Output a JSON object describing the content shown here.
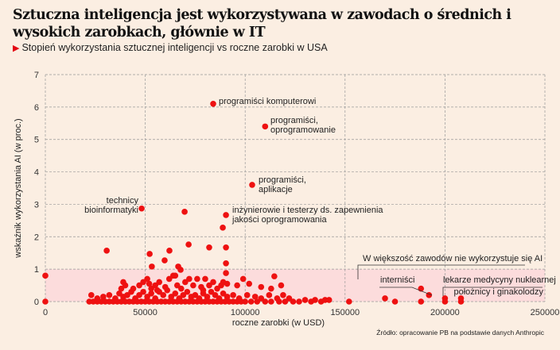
{
  "title": "Sztuczna inteligencja jest wykorzystywana w zawodach o średnich i wysokich zarobkach, głównie w IT",
  "subtitle": "Stopień wykorzystania sztucznej inteligencji vs roczne zarobki w USA",
  "source": "Źródło: opracowanie PB na podstawie danych Anthropic",
  "colors": {
    "background": "#fbeee2",
    "points": "#ee1111",
    "band": "#fcdcdc",
    "accent": "#e30613",
    "grid": "#999999"
  },
  "chart_data": {
    "type": "scatter",
    "xlabel": "roczne zarobki (w USD)",
    "ylabel": "wskaźnik wykorzystania AI (w proc.)",
    "xlim": [
      0,
      250000
    ],
    "ylim": [
      0,
      7
    ],
    "xticks": [
      "0",
      "50000",
      "100000",
      "150000",
      "200000",
      "250000"
    ],
    "yticks": [
      "0",
      "1",
      "2",
      "3",
      "4",
      "5",
      "6",
      "7"
    ],
    "grid": true,
    "highlight_band": [
      0,
      1
    ],
    "annotations": [
      {
        "text": "programiści komputerowi",
        "x": 84000,
        "y": 6.1
      },
      {
        "text": "programiści,",
        "text2": "oprogramowanie",
        "x": 110000,
        "y": 5.4
      },
      {
        "text": "programiści,",
        "text2": "aplikacje",
        "x": 103500,
        "y": 3.6
      },
      {
        "text": "technicy",
        "text2": "bioinformatyki",
        "x": 48200,
        "y": 2.87
      },
      {
        "text": "inżynierowie i testerzy ds. zapewnienia",
        "text2": "jakości oprogramowania",
        "x": 90400,
        "y": 2.67
      },
      {
        "text": "W większość zawodów nie wykorzystuje się AI"
      },
      {
        "text": "interniści",
        "x": 192000,
        "y": 0.2
      },
      {
        "text": "lekarze medycyny nuklearnej",
        "x": 200000,
        "y": 0.1
      },
      {
        "text": "położnicy i ginakolodzy",
        "x": 208000,
        "y": 0.1
      }
    ],
    "points": [
      [
        0,
        0.8
      ],
      [
        0,
        0
      ],
      [
        84000,
        6.1
      ],
      [
        110000,
        5.4
      ],
      [
        103500,
        3.6
      ],
      [
        48200,
        2.87
      ],
      [
        69700,
        2.77
      ],
      [
        90400,
        2.67
      ],
      [
        88800,
        2.28
      ],
      [
        30700,
        1.57
      ],
      [
        52200,
        1.47
      ],
      [
        62100,
        1.57
      ],
      [
        71700,
        1.76
      ],
      [
        82000,
        1.67
      ],
      [
        90400,
        1.67
      ],
      [
        59700,
        1.27
      ],
      [
        53300,
        1.08
      ],
      [
        66500,
        1.08
      ],
      [
        67700,
        0.98
      ],
      [
        90400,
        1.18
      ],
      [
        90400,
        0.88
      ],
      [
        114600,
        0.78
      ],
      [
        22000,
        0
      ],
      [
        24000,
        0
      ],
      [
        26000,
        0
      ],
      [
        28000,
        0
      ],
      [
        30000,
        0
      ],
      [
        32000,
        0
      ],
      [
        34000,
        0
      ],
      [
        36000,
        0
      ],
      [
        38000,
        0
      ],
      [
        40000,
        0
      ],
      [
        42000,
        0
      ],
      [
        44000,
        0
      ],
      [
        46000,
        0
      ],
      [
        48000,
        0
      ],
      [
        50000,
        0
      ],
      [
        52000,
        0
      ],
      [
        54000,
        0
      ],
      [
        56000,
        0
      ],
      [
        58000,
        0
      ],
      [
        60000,
        0
      ],
      [
        62000,
        0
      ],
      [
        64000,
        0
      ],
      [
        66000,
        0
      ],
      [
        68000,
        0
      ],
      [
        70000,
        0
      ],
      [
        72000,
        0
      ],
      [
        74000,
        0
      ],
      [
        76000,
        0
      ],
      [
        78000,
        0
      ],
      [
        80000,
        0
      ],
      [
        82000,
        0
      ],
      [
        84000,
        0
      ],
      [
        86000,
        0
      ],
      [
        88000,
        0
      ],
      [
        90000,
        0
      ],
      [
        92000,
        0
      ],
      [
        94000,
        0
      ],
      [
        96000,
        0
      ],
      [
        98000,
        0
      ],
      [
        100000,
        0
      ],
      [
        103000,
        0
      ],
      [
        106000,
        0
      ],
      [
        110000,
        0
      ],
      [
        113000,
        0
      ],
      [
        117000,
        0
      ],
      [
        120000,
        0
      ],
      [
        124000,
        0
      ],
      [
        127000,
        0
      ],
      [
        23000,
        0.2
      ],
      [
        26000,
        0.1
      ],
      [
        29000,
        0.15
      ],
      [
        32000,
        0.2
      ],
      [
        35000,
        0.1
      ],
      [
        37000,
        0.25
      ],
      [
        39000,
        0.15
      ],
      [
        41000,
        0.2
      ],
      [
        43000,
        0.3
      ],
      [
        45000,
        0.1
      ],
      [
        47000,
        0.2
      ],
      [
        49000,
        0.3
      ],
      [
        51000,
        0.15
      ],
      [
        53000,
        0.25
      ],
      [
        55000,
        0.1
      ],
      [
        57000,
        0.3
      ],
      [
        59000,
        0.2
      ],
      [
        61000,
        0.35
      ],
      [
        63000,
        0.15
      ],
      [
        65000,
        0.25
      ],
      [
        67000,
        0.1
      ],
      [
        69000,
        0.2
      ],
      [
        71000,
        0.3
      ],
      [
        73000,
        0.15
      ],
      [
        75000,
        0.2
      ],
      [
        77000,
        0.1
      ],
      [
        79000,
        0.25
      ],
      [
        81000,
        0.15
      ],
      [
        83000,
        0.3
      ],
      [
        85000,
        0.2
      ],
      [
        87000,
        0.1
      ],
      [
        89000,
        0.25
      ],
      [
        91000,
        0.15
      ],
      [
        94000,
        0.2
      ],
      [
        97000,
        0.1
      ],
      [
        101000,
        0.2
      ],
      [
        105000,
        0.15
      ],
      [
        108000,
        0.1
      ],
      [
        112000,
        0.2
      ],
      [
        116000,
        0.1
      ],
      [
        119000,
        0.2
      ],
      [
        122000,
        0.1
      ],
      [
        38000,
        0.4
      ],
      [
        40000,
        0.5
      ],
      [
        44000,
        0.4
      ],
      [
        47000,
        0.5
      ],
      [
        49000,
        0.6
      ],
      [
        51000,
        0.7
      ],
      [
        53000,
        0.4
      ],
      [
        55000,
        0.5
      ],
      [
        57000,
        0.6
      ],
      [
        60000,
        0.45
      ],
      [
        62000,
        0.7
      ],
      [
        64000,
        0.8
      ],
      [
        66000,
        0.5
      ],
      [
        68000,
        0.4
      ],
      [
        70000,
        0.6
      ],
      [
        72000,
        0.7
      ],
      [
        74000,
        0.5
      ],
      [
        76000,
        0.7
      ],
      [
        78000,
        0.45
      ],
      [
        80000,
        0.7
      ],
      [
        82000,
        0.5
      ],
      [
        84000,
        0.6
      ],
      [
        86000,
        0.4
      ],
      [
        88000,
        0.5
      ],
      [
        91000,
        0.55
      ],
      [
        96000,
        0.5
      ],
      [
        99000,
        0.7
      ],
      [
        102000,
        0.55
      ],
      [
        108000,
        0.45
      ],
      [
        113000,
        0.4
      ],
      [
        118000,
        0.5
      ],
      [
        39000,
        0.6
      ],
      [
        52000,
        0.55
      ],
      [
        56000,
        0.35
      ],
      [
        65000,
        0.8
      ],
      [
        79000,
        0.35
      ],
      [
        89000,
        0.6
      ],
      [
        130000,
        0.05
      ],
      [
        133000,
        0
      ],
      [
        135000,
        0.05
      ],
      [
        138000,
        0
      ],
      [
        140000,
        0.05
      ],
      [
        142000,
        0.05
      ],
      [
        152000,
        0
      ],
      [
        170000,
        0.1
      ],
      [
        175000,
        0
      ],
      [
        188000,
        0.4
      ],
      [
        188000,
        0
      ],
      [
        192000,
        0.2
      ],
      [
        200000,
        0.1
      ],
      [
        200000,
        0
      ],
      [
        208000,
        0.1
      ],
      [
        208000,
        0
      ]
    ]
  }
}
